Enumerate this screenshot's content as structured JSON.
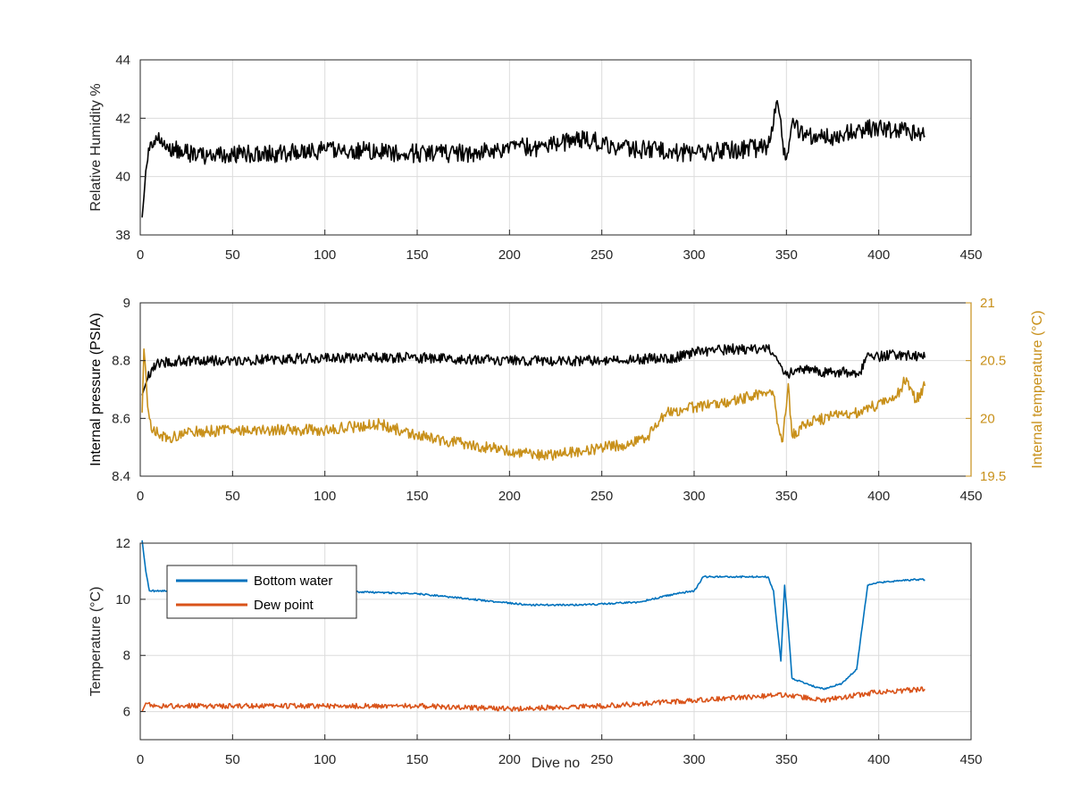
{
  "colors": {
    "black": "#000000",
    "gold": "#C8901A",
    "blue": "#0072BD",
    "orange": "#D95319",
    "grid": "#dcdcdc",
    "axis": "#262626"
  },
  "chart_data": [
    {
      "id": "humidity",
      "type": "line",
      "xlabel": "",
      "ylabel": "Relative Humidity %",
      "xlim": [
        0,
        450
      ],
      "ylim": [
        38,
        44
      ],
      "xticks": [
        0,
        50,
        100,
        150,
        200,
        250,
        300,
        350,
        400,
        450
      ],
      "yticks": [
        38,
        40,
        42,
        44
      ],
      "grid": true,
      "series": [
        {
          "color": "black",
          "anchors": [
            [
              1,
              38.6
            ],
            [
              2,
              39.3
            ],
            [
              3,
              40.2
            ],
            [
              5,
              40.9
            ],
            [
              8,
              41.1
            ],
            [
              10,
              41.5
            ],
            [
              15,
              41.0
            ],
            [
              25,
              40.8
            ],
            [
              40,
              40.7
            ],
            [
              60,
              40.8
            ],
            [
              80,
              40.8
            ],
            [
              100,
              40.9
            ],
            [
              120,
              40.9
            ],
            [
              140,
              40.8
            ],
            [
              160,
              40.8
            ],
            [
              180,
              40.8
            ],
            [
              200,
              41.0
            ],
            [
              220,
              41.0
            ],
            [
              240,
              41.3
            ],
            [
              260,
              41.0
            ],
            [
              280,
              40.9
            ],
            [
              300,
              40.8
            ],
            [
              320,
              40.9
            ],
            [
              340,
              41.0
            ],
            [
              343,
              41.8
            ],
            [
              345,
              42.6
            ],
            [
              348,
              41.2
            ],
            [
              350,
              40.6
            ],
            [
              353,
              41.8
            ],
            [
              360,
              41.5
            ],
            [
              370,
              41.3
            ],
            [
              380,
              41.4
            ],
            [
              390,
              41.6
            ],
            [
              400,
              41.7
            ],
            [
              410,
              41.6
            ],
            [
              420,
              41.5
            ],
            [
              425,
              41.4
            ]
          ],
          "noise": 0.32,
          "last_x": 425
        }
      ]
    },
    {
      "id": "pressure-temp",
      "type": "line",
      "xlabel": "",
      "ylabel": "Internal pressure (PSIA)",
      "ylabel_right": "Internal temperature (°C)",
      "xlim": [
        0,
        450
      ],
      "ylim": [
        8.4,
        9
      ],
      "ylim_right": [
        19.5,
        21
      ],
      "xticks": [
        0,
        50,
        100,
        150,
        200,
        250,
        300,
        350,
        400,
        450
      ],
      "yticks": [
        8.4,
        8.6,
        8.8,
        9
      ],
      "yticks_right": [
        19.5,
        20,
        20.5,
        21
      ],
      "grid": true,
      "series": [
        {
          "axis": "left",
          "color": "black",
          "anchors": [
            [
              1,
              8.68
            ],
            [
              3,
              8.72
            ],
            [
              6,
              8.77
            ],
            [
              10,
              8.79
            ],
            [
              20,
              8.8
            ],
            [
              50,
              8.8
            ],
            [
              100,
              8.81
            ],
            [
              150,
              8.81
            ],
            [
              200,
              8.8
            ],
            [
              250,
              8.8
            ],
            [
              290,
              8.81
            ],
            [
              300,
              8.83
            ],
            [
              320,
              8.84
            ],
            [
              340,
              8.84
            ],
            [
              343,
              8.82
            ],
            [
              346,
              8.79
            ],
            [
              350,
              8.75
            ],
            [
              355,
              8.77
            ],
            [
              370,
              8.76
            ],
            [
              385,
              8.76
            ],
            [
              390,
              8.76
            ],
            [
              393,
              8.81
            ],
            [
              410,
              8.82
            ],
            [
              425,
              8.81
            ]
          ],
          "noise": 0.018,
          "last_x": 425
        },
        {
          "axis": "right",
          "color": "gold",
          "anchors": [
            [
              1,
              20.05
            ],
            [
              2,
              20.6
            ],
            [
              3,
              20.4
            ],
            [
              4,
              20.1
            ],
            [
              6,
              19.9
            ],
            [
              15,
              19.82
            ],
            [
              25,
              19.88
            ],
            [
              50,
              19.9
            ],
            [
              75,
              19.9
            ],
            [
              100,
              19.9
            ],
            [
              130,
              19.95
            ],
            [
              150,
              19.85
            ],
            [
              175,
              19.78
            ],
            [
              200,
              19.72
            ],
            [
              220,
              19.68
            ],
            [
              240,
              19.72
            ],
            [
              265,
              19.78
            ],
            [
              275,
              19.85
            ],
            [
              285,
              20.05
            ],
            [
              300,
              20.1
            ],
            [
              320,
              20.15
            ],
            [
              340,
              20.22
            ],
            [
              343,
              20.2
            ],
            [
              346,
              19.9
            ],
            [
              348,
              19.8
            ],
            [
              351,
              20.3
            ],
            [
              353,
              19.85
            ],
            [
              360,
              19.95
            ],
            [
              375,
              20.02
            ],
            [
              390,
              20.05
            ],
            [
              410,
              20.2
            ],
            [
              415,
              20.35
            ],
            [
              420,
              20.15
            ],
            [
              425,
              20.28
            ]
          ],
          "noise": 0.05,
          "last_x": 425
        }
      ]
    },
    {
      "id": "temperature",
      "type": "line",
      "xlabel": "Dive no",
      "ylabel": "Temperature (°C)",
      "xlim": [
        0,
        450
      ],
      "ylim": [
        5,
        12
      ],
      "xticks": [
        0,
        50,
        100,
        150,
        200,
        250,
        300,
        350,
        400,
        450
      ],
      "yticks": [
        6,
        8,
        10,
        12
      ],
      "grid": true,
      "legend": "upper-left",
      "series": [
        {
          "name": "Bottom water",
          "color": "blue",
          "anchors": [
            [
              1,
              12.1
            ],
            [
              3,
              11.0
            ],
            [
              5,
              10.3
            ],
            [
              15,
              10.3
            ],
            [
              50,
              10.3
            ],
            [
              100,
              10.3
            ],
            [
              150,
              10.2
            ],
            [
              180,
              10.0
            ],
            [
              210,
              9.8
            ],
            [
              240,
              9.8
            ],
            [
              270,
              9.9
            ],
            [
              290,
              10.2
            ],
            [
              300,
              10.3
            ],
            [
              305,
              10.8
            ],
            [
              340,
              10.8
            ],
            [
              343,
              10.3
            ],
            [
              345,
              9.0
            ],
            [
              347,
              7.8
            ],
            [
              349,
              10.5
            ],
            [
              351,
              9.0
            ],
            [
              353,
              7.2
            ],
            [
              360,
              7.0
            ],
            [
              370,
              6.8
            ],
            [
              380,
              7.0
            ],
            [
              388,
              7.5
            ],
            [
              391,
              9.0
            ],
            [
              394,
              10.5
            ],
            [
              400,
              10.6
            ],
            [
              420,
              10.7
            ],
            [
              425,
              10.7
            ]
          ],
          "noise": 0.03,
          "last_x": 425
        },
        {
          "name": "Dew point",
          "color": "orange",
          "anchors": [
            [
              1,
              6.0
            ],
            [
              3,
              6.3
            ],
            [
              10,
              6.2
            ],
            [
              50,
              6.2
            ],
            [
              100,
              6.2
            ],
            [
              150,
              6.2
            ],
            [
              200,
              6.1
            ],
            [
              250,
              6.2
            ],
            [
              300,
              6.4
            ],
            [
              350,
              6.6
            ],
            [
              370,
              6.4
            ],
            [
              400,
              6.7
            ],
            [
              425,
              6.8
            ]
          ],
          "noise": 0.09,
          "last_x": 425
        }
      ]
    }
  ]
}
